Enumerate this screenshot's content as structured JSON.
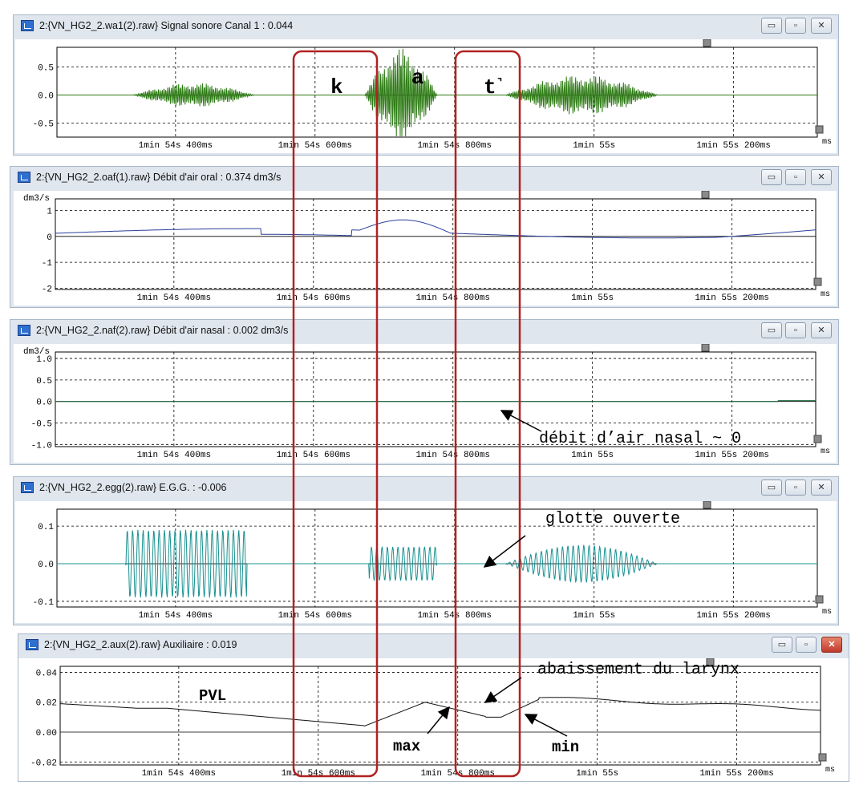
{
  "windows": [
    {
      "id": "signal",
      "title": "2:{VN_HG2_2.wa1(2).raw} Signal sonore Canal 1 : 0.044",
      "unit": "",
      "yticks": [
        "0.5",
        "0.0",
        "-0.5"
      ],
      "yvals": [
        0.5,
        0.0,
        -0.5
      ],
      "ylim": [
        -0.75,
        0.85
      ],
      "color": "#2b7a12",
      "close_active": false
    },
    {
      "id": "oral",
      "title": "2:{VN_HG2_2.oaf(1).raw} Débit d'air oral : 0.374 dm3/s",
      "unit": "dm3/s",
      "yticks": [
        "1",
        "0",
        "-1",
        "-2"
      ],
      "yvals": [
        1,
        0,
        -1,
        -2
      ],
      "ylim": [
        -2.05,
        1.45
      ],
      "color": "#2a3f9a",
      "close_active": false
    },
    {
      "id": "nasal",
      "title": "2:{VN_HG2_2.naf(2).raw} Débit d'air nasal : 0.002 dm3/s",
      "unit": "dm3/s",
      "yticks": [
        "1.0",
        "0.5",
        "0.0",
        "-0.5",
        "-1.0"
      ],
      "yvals": [
        1.0,
        0.5,
        0.0,
        -0.5,
        -1.0
      ],
      "ylim": [
        -1.05,
        1.15
      ],
      "color": "#176a3b",
      "close_active": false
    },
    {
      "id": "egg",
      "title": "2:{VN_HG2_2.egg(2).raw} E.G.G. : -0.006",
      "unit": "",
      "yticks": [
        "0.1",
        "0.0",
        "-0.1"
      ],
      "yvals": [
        0.1,
        0.0,
        -0.1
      ],
      "ylim": [
        -0.115,
        0.145
      ],
      "color": "#1a9090",
      "close_active": false
    },
    {
      "id": "aux",
      "title": "2:{VN_HG2_2.aux(2).raw} Auxiliaire : 0.019",
      "unit": "",
      "yticks": [
        "0.04",
        "0.02",
        "0.00",
        "-0.02"
      ],
      "yvals": [
        0.04,
        0.02,
        0.0,
        -0.02
      ],
      "ylim": [
        -0.022,
        0.044
      ],
      "color": "#111111",
      "close_active": true
    }
  ],
  "xaxis": {
    "ticks": [
      "1min 54s 400ms",
      "1min 54s 600ms",
      "1min 54s 800ms",
      "1min 55s",
      "1min 55s 200ms"
    ],
    "tick_ms": [
      114400,
      114600,
      114800,
      115000,
      115200
    ],
    "xlim_ms": [
      114230,
      115320
    ],
    "unit": "ms"
  },
  "buttons": {
    "minimize": "▭",
    "maximize": "▫",
    "close": "✕"
  },
  "annotations": {
    "k": "k",
    "a": "a",
    "t": "t˺",
    "nasal": "débit d’air nasal ~ 0",
    "glottis": "glotte ouverte",
    "larynx": "abaissement du larynx",
    "pvl": "PVL",
    "max": "max",
    "min": "min"
  },
  "accent_color": "#b22222"
}
